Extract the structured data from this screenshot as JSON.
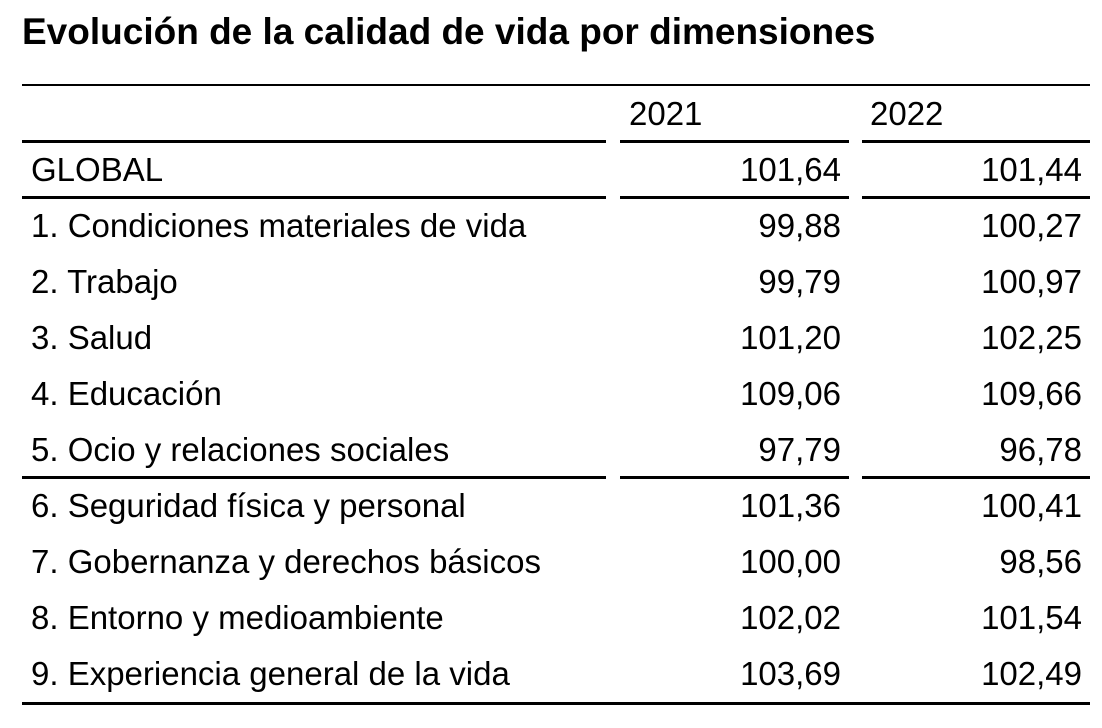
{
  "title": "Evolución de la calidad de vida por dimensiones",
  "table": {
    "headers": [
      "",
      "2021",
      "2022"
    ],
    "rows": [
      {
        "label": "GLOBAL",
        "y2021": "101,64",
        "y2022": "101,44"
      },
      {
        "label": "1. Condiciones materiales de vida",
        "y2021": "99,88",
        "y2022": "100,27"
      },
      {
        "label": "2. Trabajo",
        "y2021": "99,79",
        "y2022": "100,97"
      },
      {
        "label": "3. Salud",
        "y2021": "101,20",
        "y2022": "102,25"
      },
      {
        "label": "4. Educación",
        "y2021": "109,06",
        "y2022": "109,66"
      },
      {
        "label": "5. Ocio y relaciones sociales",
        "y2021": "97,79",
        "y2022": "96,78"
      },
      {
        "label": "6. Seguridad física y personal",
        "y2021": "101,36",
        "y2022": "100,41"
      },
      {
        "label": "7. Gobernanza y derechos básicos",
        "y2021": "100,00",
        "y2022": "98,56"
      },
      {
        "label": "8. Entorno y medioambiente",
        "y2021": "102,02",
        "y2022": "101,54"
      },
      {
        "label": "9. Experiencia general de la vida",
        "y2021": "103,69",
        "y2022": "102,49"
      }
    ]
  }
}
